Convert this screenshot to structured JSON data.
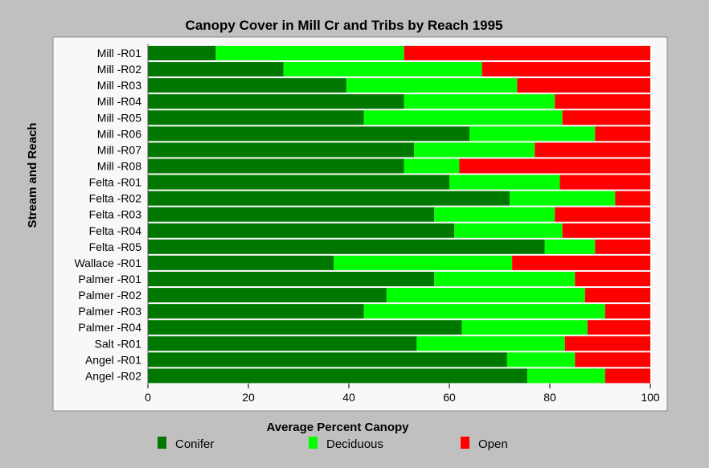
{
  "chart_data": {
    "type": "bar",
    "orientation": "horizontal",
    "stacked": true,
    "title": "Canopy Cover in Mill Cr and Tribs by Reach 1995",
    "xlabel": "Average Percent Canopy",
    "ylabel": "Stream and Reach",
    "xlim": [
      0,
      100
    ],
    "xticks": [
      0,
      20,
      40,
      60,
      80,
      100
    ],
    "grid": false,
    "legend_position": "bottom",
    "categories": [
      "Mill -R01",
      "Mill -R02",
      "Mill -R03",
      "Mill -R04",
      "Mill -R05",
      "Mill -R06",
      "Mill -R07",
      "Mill -R08",
      "Felta -R01",
      "Felta -R02",
      "Felta -R03",
      "Felta -R04",
      "Felta -R05",
      "Wallace -R01",
      "Palmer -R01",
      "Palmer -R02",
      "Palmer -R03",
      "Palmer -R04",
      "Salt -R01",
      "Angel -R01",
      "Angel -R02"
    ],
    "series": [
      {
        "name": "Conifer",
        "color": "#007800",
        "values": [
          13.5,
          27,
          39.5,
          51,
          43,
          64,
          53,
          51,
          60,
          72,
          57,
          61,
          79,
          37,
          57,
          47.5,
          43,
          62.5,
          53.5,
          71.5,
          75.5
        ]
      },
      {
        "name": "Deciduous",
        "color": "#00ff00",
        "values": [
          37.5,
          39.5,
          34,
          30,
          39.5,
          25,
          24,
          11,
          22,
          21,
          24,
          21.5,
          10,
          35.5,
          28,
          39.5,
          48,
          25,
          29.5,
          13.5,
          15.5
        ]
      },
      {
        "name": "Open",
        "color": "#ff0000",
        "values": [
          49,
          33.5,
          26.5,
          19,
          17.5,
          11,
          23,
          38,
          18,
          7,
          19,
          17.5,
          11,
          27.5,
          15,
          13,
          9,
          12.5,
          17,
          15,
          9
        ]
      }
    ]
  },
  "colors": {
    "background": "#c0c0c0",
    "plot_background": "#f8f8f8"
  }
}
